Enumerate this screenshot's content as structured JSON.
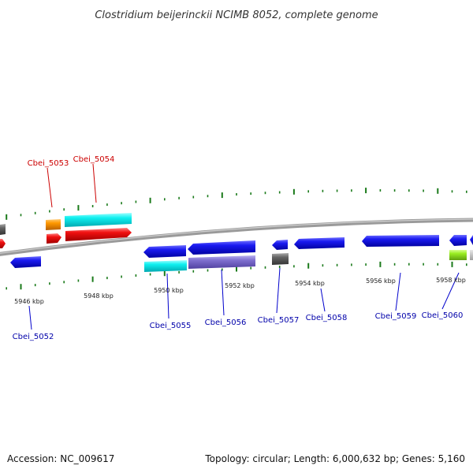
{
  "title": "Clostridium beijerinckii NCIMB 8052, complete genome",
  "footer": {
    "accession": "Accession: NC_009617",
    "summary": "Topology: circular; Length: 6,000,632 bp; Genes: 5,160"
  },
  "scale_labels": [
    "5946 kbp",
    "5948 kbp",
    "5950 kbp",
    "5952 kbp",
    "5954 kbp",
    "5956 kbp",
    "5958 kbp"
  ],
  "genes_top": [
    {
      "label": "Cbei_5053",
      "color": "#cc0000"
    },
    {
      "label": "Cbei_5054",
      "color": "#cc0000"
    }
  ],
  "genes_bottom": [
    {
      "label": "Cbei_5052",
      "color": "#0000aa"
    },
    {
      "label": "Cbei_5055",
      "color": "#0000aa"
    },
    {
      "label": "Cbei_5056",
      "color": "#0000aa"
    },
    {
      "label": "Cbei_5057",
      "color": "#0000aa"
    },
    {
      "label": "Cbei_5058",
      "color": "#0000aa"
    },
    {
      "label": "Cbei_5059",
      "color": "#0000aa"
    },
    {
      "label": "Cbei_5060",
      "color": "#0000aa"
    }
  ],
  "colors": {
    "backbone": "#888888",
    "tick": "#1a7a1a",
    "blue_gene": "#1010e0",
    "red_gene": "#ee1010",
    "cyan_gene": "#10f0f0",
    "orange_gene": "#ff9900",
    "purple_gene": "#8070d0",
    "gray_gene": "#666666",
    "green_gene": "#99ee22"
  }
}
